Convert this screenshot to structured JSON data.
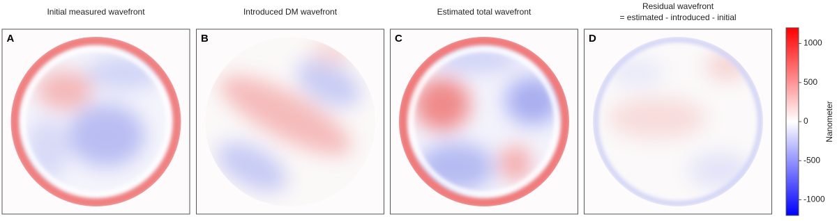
{
  "panels": [
    {
      "letter": "A",
      "title": "Initial measured wavefront"
    },
    {
      "letter": "B",
      "title": "Introduced DM wavefront"
    },
    {
      "letter": "C",
      "title": "Estimated total wavefront"
    },
    {
      "letter": "D",
      "title": "Residual wavefront",
      "subtitle": "= estimated - introduced - initial"
    }
  ],
  "colorbar": {
    "label": "Nanometer",
    "lim": [
      -1200,
      1200
    ],
    "ticks": [
      1000,
      500,
      0,
      -500,
      -1000
    ]
  }
}
